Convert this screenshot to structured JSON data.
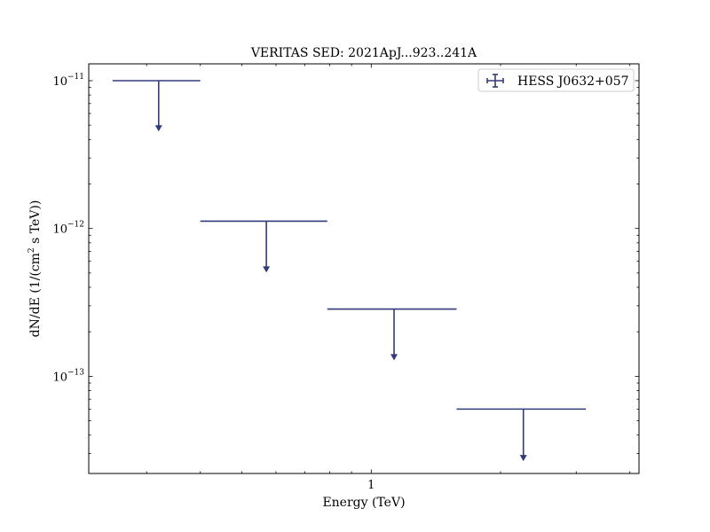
{
  "chart_data": {
    "type": "scatter",
    "title": "VERITAS SED: 2021ApJ...923..241A",
    "xlabel": "Energy (TeV)",
    "ylabel_parts": [
      "dN/dE (1/(cm",
      "2",
      " s TeV))"
    ],
    "x_scale": "log",
    "y_scale": "log",
    "xlim": [
      0.22,
      4.2
    ],
    "ylim": [
      2.2e-14,
      1.3e-11
    ],
    "x_major_ticks": [
      {
        "value": 1,
        "label": "1"
      }
    ],
    "x_minor_ticks": [
      0.3,
      0.4,
      0.5,
      0.6,
      0.7,
      0.8,
      0.9,
      2,
      3,
      4
    ],
    "y_major_ticks": [
      {
        "value": 1e-11,
        "base": "10",
        "exp": "−11"
      },
      {
        "value": 1e-12,
        "base": "10",
        "exp": "−12"
      },
      {
        "value": 1e-13,
        "base": "10",
        "exp": "−13"
      }
    ],
    "legend_position": "top-right",
    "series": [
      {
        "name": "HESS J0632+057",
        "color": "#333a7a",
        "upper_limits": true,
        "points": [
          {
            "x": 0.32,
            "x_low": 0.25,
            "x_high": 0.4,
            "y": 1e-11,
            "arrow_to": 4.6e-12
          },
          {
            "x": 0.57,
            "x_low": 0.4,
            "x_high": 0.79,
            "y": 1.12e-12,
            "arrow_to": 5.1e-13
          },
          {
            "x": 1.13,
            "x_low": 0.79,
            "x_high": 1.58,
            "y": 2.85e-13,
            "arrow_to": 1.3e-13
          },
          {
            "x": 2.26,
            "x_low": 1.58,
            "x_high": 3.16,
            "y": 6e-14,
            "arrow_to": 2.7e-14
          }
        ]
      }
    ]
  }
}
